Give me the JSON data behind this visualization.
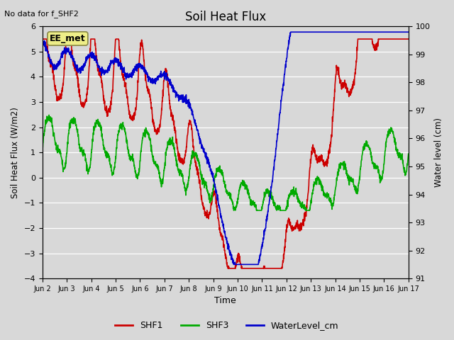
{
  "title": "Soil Heat Flux",
  "no_data_text": "No data for f_SHF2",
  "ylabel_left": "Soil Heat Flux (W/m2)",
  "ylabel_right": "Water level (cm)",
  "xlabel": "Time",
  "ylim_left": [
    -4.0,
    6.0
  ],
  "ylim_right": [
    91.0,
    100.0
  ],
  "yticks_left": [
    -4.0,
    -3.0,
    -2.0,
    -1.0,
    0.0,
    1.0,
    2.0,
    3.0,
    4.0,
    5.0,
    6.0
  ],
  "yticks_right": [
    91.0,
    92.0,
    93.0,
    94.0,
    95.0,
    96.0,
    97.0,
    98.0,
    99.0,
    100.0
  ],
  "xtick_labels": [
    "Jun 2",
    "Jun 3",
    "Jun 4",
    "Jun 5",
    "Jun 6",
    "Jun 7",
    "Jun 8",
    "Jun 9",
    "Jun 10",
    "Jun 11",
    "Jun 12",
    "Jun 13",
    "Jun 14",
    "Jun 15",
    "Jun 16",
    "Jun 17"
  ],
  "legend_labels": [
    "SHF1",
    "SHF3",
    "WaterLevel_cm"
  ],
  "shf1_color": "#cc0000",
  "shf3_color": "#00aa00",
  "water_color": "#0000cc",
  "shf1_lw": 1.2,
  "shf3_lw": 1.2,
  "water_lw": 1.2,
  "background_color": "#d8d8d8",
  "plot_bg_color": "#d8d8d8",
  "grid_color": "#ffffff",
  "station_box_text": "EE_met",
  "station_box_facecolor": "#eeee88",
  "station_box_edgecolor": "#888844"
}
